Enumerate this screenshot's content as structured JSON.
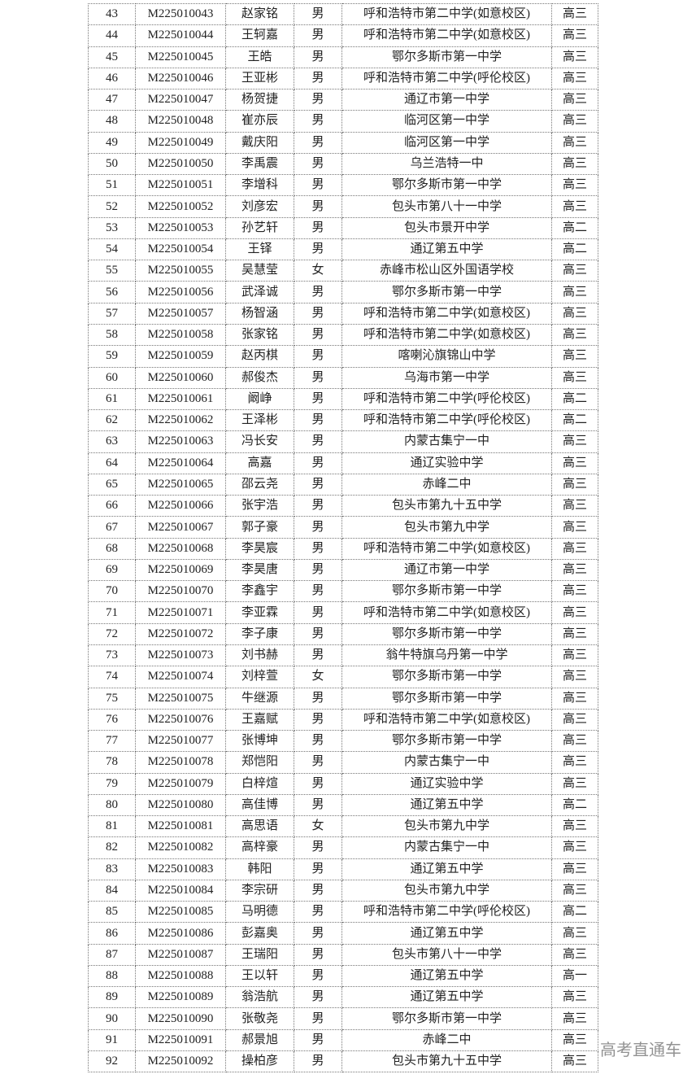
{
  "watermark": "高考直通车",
  "rows": [
    [
      "43",
      "M225010043",
      "赵家铭",
      "男",
      "呼和浩特市第二中学(如意校区)",
      "高三"
    ],
    [
      "44",
      "M225010044",
      "王轲嘉",
      "男",
      "呼和浩特市第二中学(如意校区)",
      "高三"
    ],
    [
      "45",
      "M225010045",
      "王皓",
      "男",
      "鄂尔多斯市第一中学",
      "高三"
    ],
    [
      "46",
      "M225010046",
      "王亚彬",
      "男",
      "呼和浩特市第二中学(呼伦校区)",
      "高三"
    ],
    [
      "47",
      "M225010047",
      "杨贺捷",
      "男",
      "通辽市第一中学",
      "高三"
    ],
    [
      "48",
      "M225010048",
      "崔亦辰",
      "男",
      "临河区第一中学",
      "高三"
    ],
    [
      "49",
      "M225010049",
      "戴庆阳",
      "男",
      "临河区第一中学",
      "高三"
    ],
    [
      "50",
      "M225010050",
      "李禹震",
      "男",
      "乌兰浩特一中",
      "高三"
    ],
    [
      "51",
      "M225010051",
      "李增科",
      "男",
      "鄂尔多斯市第一中学",
      "高三"
    ],
    [
      "52",
      "M225010052",
      "刘彦宏",
      "男",
      "包头市第八十一中学",
      "高三"
    ],
    [
      "53",
      "M225010053",
      "孙艺轩",
      "男",
      "包头市景开中学",
      "高二"
    ],
    [
      "54",
      "M225010054",
      "王铎",
      "男",
      "通辽第五中学",
      "高二"
    ],
    [
      "55",
      "M225010055",
      "吴慧莹",
      "女",
      "赤峰市松山区外国语学校",
      "高三"
    ],
    [
      "56",
      "M225010056",
      "武泽诚",
      "男",
      "鄂尔多斯市第一中学",
      "高三"
    ],
    [
      "57",
      "M225010057",
      "杨智涵",
      "男",
      "呼和浩特市第二中学(如意校区)",
      "高三"
    ],
    [
      "58",
      "M225010058",
      "张家铭",
      "男",
      "呼和浩特市第二中学(如意校区)",
      "高三"
    ],
    [
      "59",
      "M225010059",
      "赵丙棋",
      "男",
      "喀喇沁旗锦山中学",
      "高三"
    ],
    [
      "60",
      "M225010060",
      "郝俊杰",
      "男",
      "乌海市第一中学",
      "高三"
    ],
    [
      "61",
      "M225010061",
      "阚峥",
      "男",
      "呼和浩特市第二中学(呼伦校区)",
      "高二"
    ],
    [
      "62",
      "M225010062",
      "王泽彬",
      "男",
      "呼和浩特市第二中学(呼伦校区)",
      "高二"
    ],
    [
      "63",
      "M225010063",
      "冯长安",
      "男",
      "内蒙古集宁一中",
      "高三"
    ],
    [
      "64",
      "M225010064",
      "高嘉",
      "男",
      "通辽实验中学",
      "高三"
    ],
    [
      "65",
      "M225010065",
      "邵云尧",
      "男",
      "赤峰二中",
      "高三"
    ],
    [
      "66",
      "M225010066",
      "张宇浩",
      "男",
      "包头市第九十五中学",
      "高三"
    ],
    [
      "67",
      "M225010067",
      "郭子豪",
      "男",
      "包头市第九中学",
      "高三"
    ],
    [
      "68",
      "M225010068",
      "李昊宸",
      "男",
      "呼和浩特市第二中学(如意校区)",
      "高三"
    ],
    [
      "69",
      "M225010069",
      "李昊唐",
      "男",
      "通辽市第一中学",
      "高三"
    ],
    [
      "70",
      "M225010070",
      "李鑫宇",
      "男",
      "鄂尔多斯市第一中学",
      "高三"
    ],
    [
      "71",
      "M225010071",
      "李亚霖",
      "男",
      "呼和浩特市第二中学(如意校区)",
      "高三"
    ],
    [
      "72",
      "M225010072",
      "李子康",
      "男",
      "鄂尔多斯市第一中学",
      "高三"
    ],
    [
      "73",
      "M225010073",
      "刘书赫",
      "男",
      "翁牛特旗乌丹第一中学",
      "高三"
    ],
    [
      "74",
      "M225010074",
      "刘梓萱",
      "女",
      "鄂尔多斯市第一中学",
      "高三"
    ],
    [
      "75",
      "M225010075",
      "牛继源",
      "男",
      "鄂尔多斯市第一中学",
      "高三"
    ],
    [
      "76",
      "M225010076",
      "王嘉赋",
      "男",
      "呼和浩特市第二中学(如意校区)",
      "高三"
    ],
    [
      "77",
      "M225010077",
      "张博坤",
      "男",
      "鄂尔多斯市第一中学",
      "高三"
    ],
    [
      "78",
      "M225010078",
      "郑恺阳",
      "男",
      "内蒙古集宁一中",
      "高三"
    ],
    [
      "79",
      "M225010079",
      "白梓煊",
      "男",
      "通辽实验中学",
      "高三"
    ],
    [
      "80",
      "M225010080",
      "高佳博",
      "男",
      "通辽第五中学",
      "高二"
    ],
    [
      "81",
      "M225010081",
      "高思语",
      "女",
      "包头市第九中学",
      "高三"
    ],
    [
      "82",
      "M225010082",
      "高梓豪",
      "男",
      "内蒙古集宁一中",
      "高三"
    ],
    [
      "83",
      "M225010083",
      "韩阳",
      "男",
      "通辽第五中学",
      "高三"
    ],
    [
      "84",
      "M225010084",
      "李宗研",
      "男",
      "包头市第九中学",
      "高三"
    ],
    [
      "85",
      "M225010085",
      "马明德",
      "男",
      "呼和浩特市第二中学(呼伦校区)",
      "高二"
    ],
    [
      "86",
      "M225010086",
      "彭嘉奥",
      "男",
      "通辽第五中学",
      "高三"
    ],
    [
      "87",
      "M225010087",
      "王瑞阳",
      "男",
      "包头市第八十一中学",
      "高三"
    ],
    [
      "88",
      "M225010088",
      "王以轩",
      "男",
      "通辽第五中学",
      "高一"
    ],
    [
      "89",
      "M225010089",
      "翁浩航",
      "男",
      "通辽第五中学",
      "高三"
    ],
    [
      "90",
      "M225010090",
      "张敬尧",
      "男",
      "鄂尔多斯市第一中学",
      "高三"
    ],
    [
      "91",
      "M225010091",
      "郝景旭",
      "男",
      "赤峰二中",
      "高三"
    ],
    [
      "92",
      "M225010092",
      "操柏彦",
      "男",
      "包头市第九十五中学",
      "高三"
    ]
  ]
}
